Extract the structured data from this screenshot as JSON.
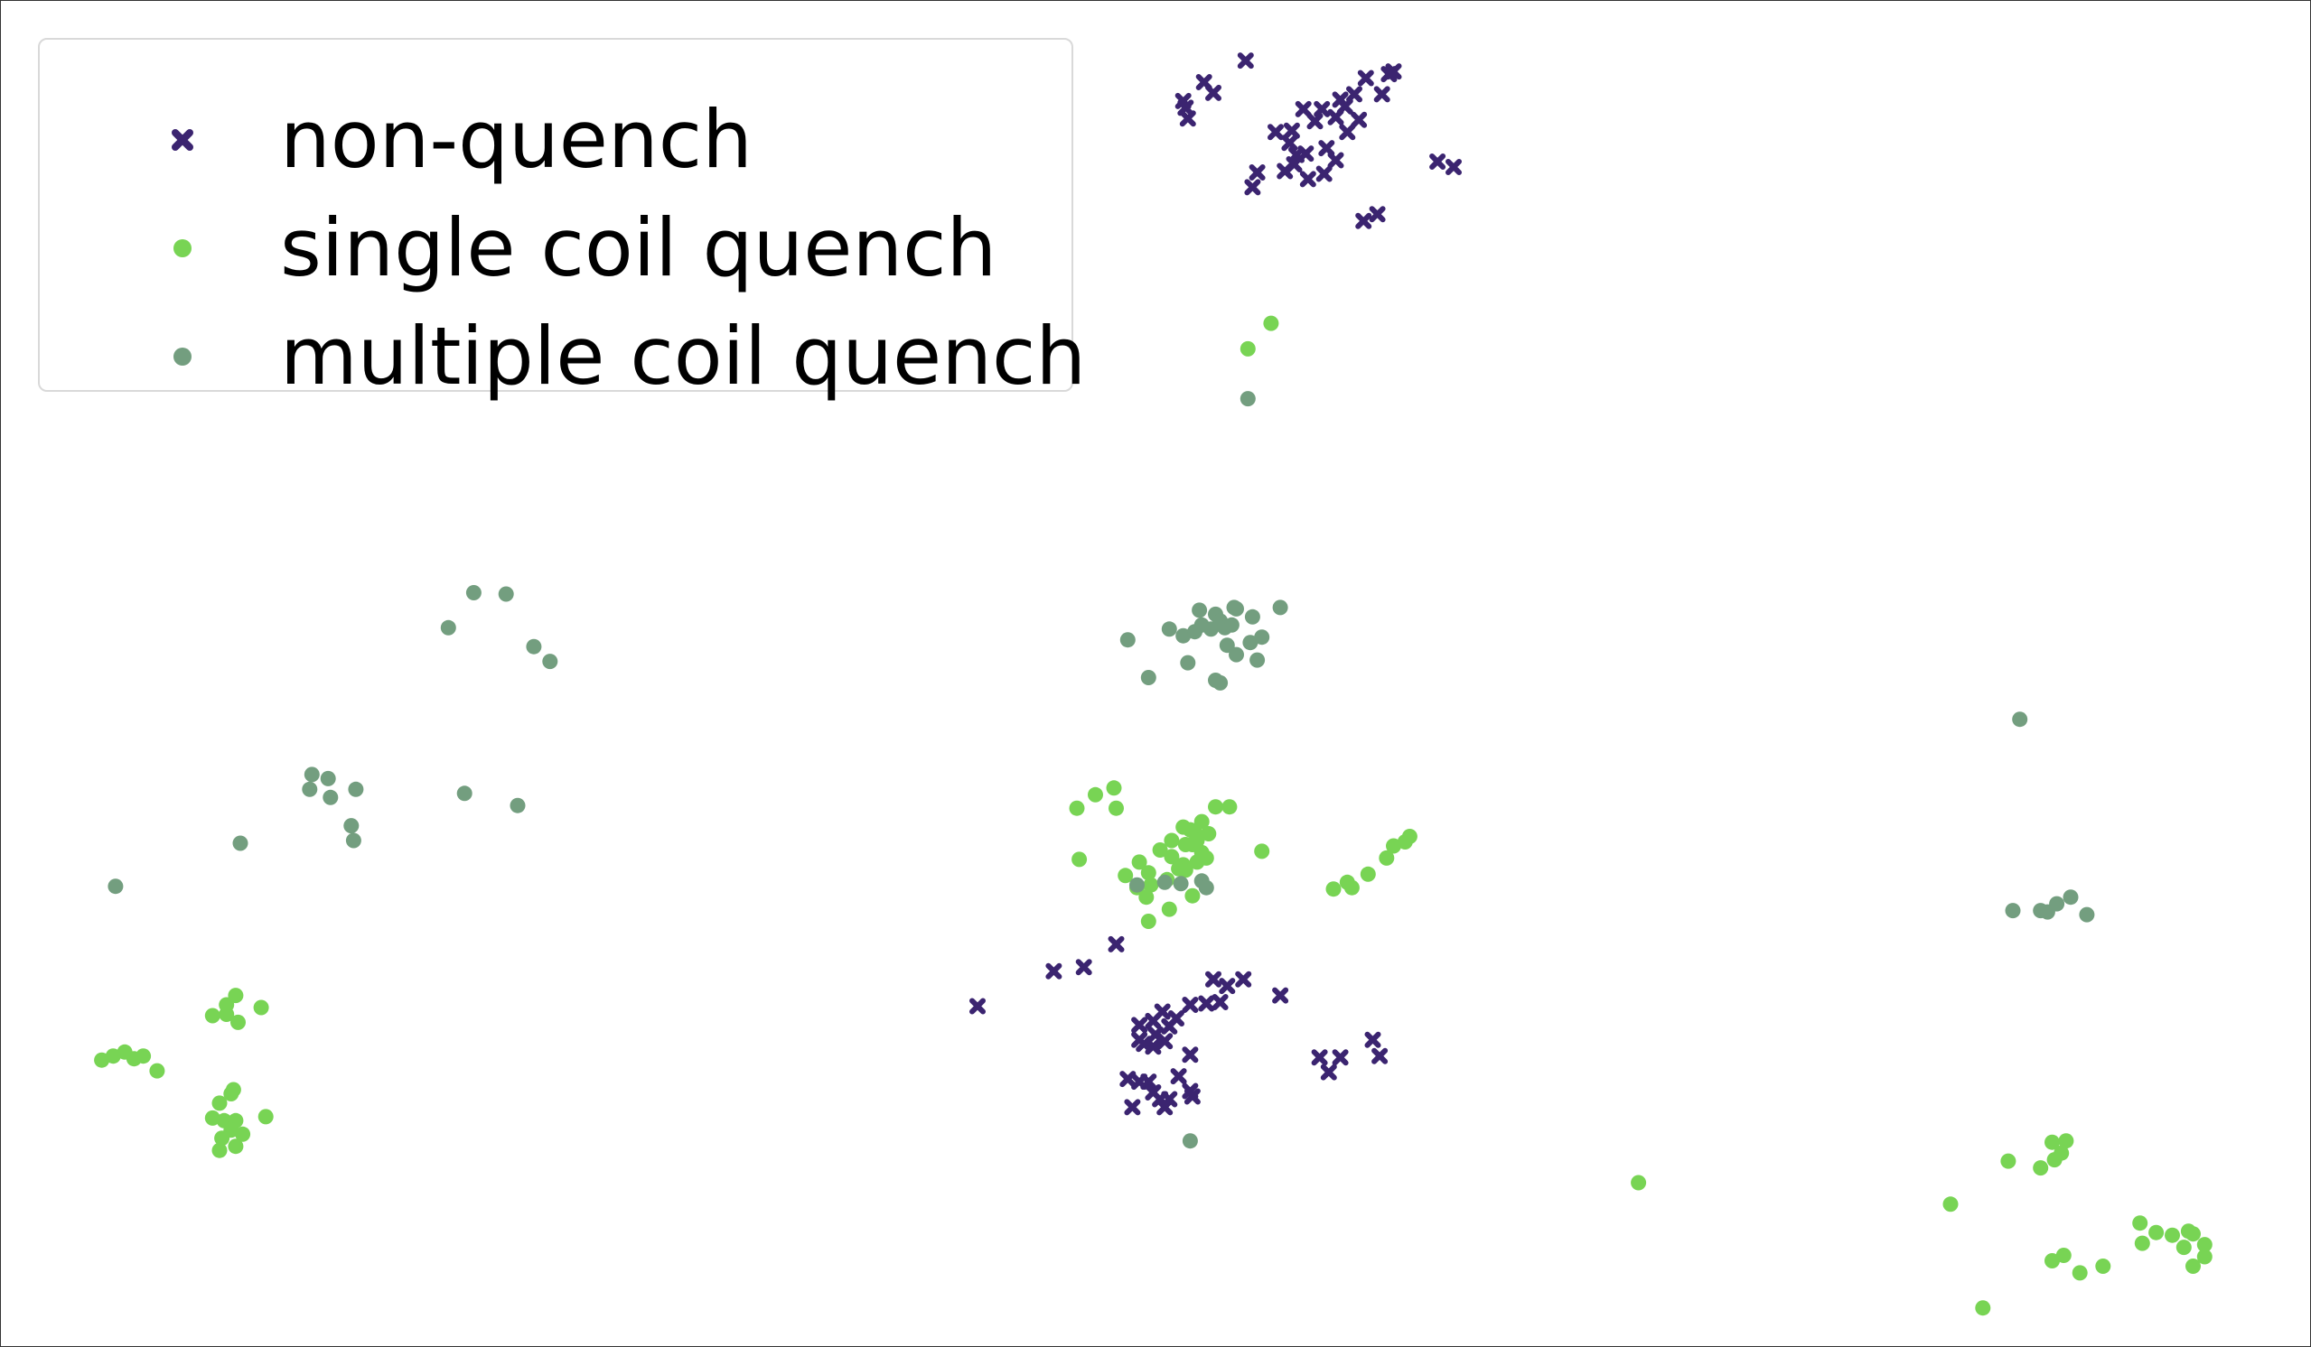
{
  "chart_data": {
    "type": "scatter",
    "title": "",
    "xlabel": "",
    "ylabel": "",
    "axes_visible": false,
    "xlim": [
      0,
      100
    ],
    "ylim": [
      0,
      100
    ],
    "legend_position": "top-left",
    "series": [
      {
        "name": "non-quench",
        "color": "#3b2470",
        "marker": "x",
        "points": [
          [
            53.9,
            95.5
          ],
          [
            52.1,
            93.9
          ],
          [
            52.5,
            93.1
          ],
          [
            51.2,
            92.5
          ],
          [
            51.4,
            91.2
          ],
          [
            51.3,
            92.0
          ],
          [
            56.4,
            91.9
          ],
          [
            56.9,
            91.0
          ],
          [
            57.2,
            91.9
          ],
          [
            57.8,
            91.3
          ],
          [
            58.0,
            92.6
          ],
          [
            58.6,
            93.0
          ],
          [
            59.1,
            94.2
          ],
          [
            60.1,
            94.5
          ],
          [
            60.3,
            94.7
          ],
          [
            59.8,
            93.0
          ],
          [
            58.2,
            92.1
          ],
          [
            58.8,
            91.1
          ],
          [
            58.3,
            90.2
          ],
          [
            57.4,
            89.0
          ],
          [
            57.8,
            88.1
          ],
          [
            56.5,
            88.6
          ],
          [
            56.0,
            87.8
          ],
          [
            55.8,
            89.4
          ],
          [
            55.2,
            90.2
          ],
          [
            55.9,
            90.3
          ],
          [
            56.1,
            88.5
          ],
          [
            55.6,
            87.3
          ],
          [
            54.4,
            87.2
          ],
          [
            54.2,
            86.1
          ],
          [
            56.6,
            86.7
          ],
          [
            57.3,
            87.1
          ],
          [
            62.2,
            88.0
          ],
          [
            62.9,
            87.6
          ],
          [
            59.6,
            84.1
          ],
          [
            59.0,
            83.6
          ],
          [
            42.3,
            25.3
          ],
          [
            45.6,
            27.9
          ],
          [
            46.9,
            28.2
          ],
          [
            48.3,
            29.9
          ],
          [
            52.5,
            27.3
          ],
          [
            53.1,
            26.8
          ],
          [
            52.8,
            25.6
          ],
          [
            52.2,
            25.5
          ],
          [
            51.5,
            25.4
          ],
          [
            50.9,
            24.4
          ],
          [
            50.3,
            24.9
          ],
          [
            50.6,
            23.8
          ],
          [
            49.9,
            24.2
          ],
          [
            49.3,
            23.9
          ],
          [
            50.0,
            23.2
          ],
          [
            50.4,
            22.7
          ],
          [
            49.5,
            22.5
          ],
          [
            49.9,
            22.3
          ],
          [
            49.3,
            22.8
          ],
          [
            51.5,
            21.7
          ],
          [
            55.4,
            26.1
          ],
          [
            53.8,
            27.3
          ],
          [
            48.8,
            19.9
          ],
          [
            49.3,
            19.7
          ],
          [
            49.7,
            19.7
          ],
          [
            49.9,
            18.9
          ],
          [
            50.2,
            18.4
          ],
          [
            50.6,
            18.4
          ],
          [
            51.0,
            20.1
          ],
          [
            51.6,
            18.6
          ],
          [
            51.5,
            19.0
          ],
          [
            49.0,
            17.8
          ],
          [
            50.4,
            17.8
          ],
          [
            57.1,
            21.5
          ],
          [
            58.0,
            21.5
          ],
          [
            57.5,
            20.4
          ],
          [
            59.4,
            22.8
          ],
          [
            59.7,
            21.6
          ]
        ]
      },
      {
        "name": "single coil quench",
        "color": "#78d454",
        "marker": "o",
        "points": [
          [
            55.0,
            76.0
          ],
          [
            54.0,
            74.1
          ],
          [
            46.6,
            40.0
          ],
          [
            47.4,
            41.0
          ],
          [
            48.2,
            41.5
          ],
          [
            48.3,
            40.0
          ],
          [
            46.7,
            36.2
          ],
          [
            49.3,
            36.0
          ],
          [
            49.7,
            35.2
          ],
          [
            50.2,
            36.9
          ],
          [
            50.7,
            37.6
          ],
          [
            51.2,
            38.6
          ],
          [
            51.7,
            38.2
          ],
          [
            52.0,
            39.0
          ],
          [
            52.6,
            40.1
          ],
          [
            53.2,
            40.1
          ],
          [
            52.3,
            38.1
          ],
          [
            51.3,
            37.3
          ],
          [
            51.6,
            37.3
          ],
          [
            51.2,
            35.8
          ],
          [
            50.7,
            36.4
          ],
          [
            51.8,
            36.0
          ],
          [
            52.2,
            36.3
          ],
          [
            51.8,
            37.6
          ],
          [
            51.5,
            38.4
          ],
          [
            52.0,
            36.7
          ],
          [
            51.0,
            35.5
          ],
          [
            50.5,
            34.7
          ],
          [
            51.3,
            35.4
          ],
          [
            49.8,
            34.3
          ],
          [
            49.6,
            33.4
          ],
          [
            48.7,
            35.0
          ],
          [
            49.2,
            34.1
          ],
          [
            50.6,
            32.5
          ],
          [
            49.7,
            31.6
          ],
          [
            51.6,
            33.5
          ],
          [
            54.6,
            36.8
          ],
          [
            57.7,
            34.0
          ],
          [
            58.3,
            34.5
          ],
          [
            58.5,
            34.1
          ],
          [
            59.2,
            35.1
          ],
          [
            60.0,
            36.3
          ],
          [
            60.3,
            37.2
          ],
          [
            60.8,
            37.5
          ],
          [
            61.0,
            37.9
          ],
          [
            10.2,
            26.1
          ],
          [
            9.8,
            25.4
          ],
          [
            9.2,
            24.6
          ],
          [
            11.3,
            25.2
          ],
          [
            10.3,
            24.1
          ],
          [
            9.8,
            24.7
          ],
          [
            4.4,
            21.3
          ],
          [
            4.9,
            21.6
          ],
          [
            5.4,
            21.9
          ],
          [
            5.8,
            21.4
          ],
          [
            6.2,
            21.6
          ],
          [
            6.8,
            20.5
          ],
          [
            10.1,
            19.1
          ],
          [
            9.5,
            18.1
          ],
          [
            10.0,
            18.8
          ],
          [
            11.5,
            17.1
          ],
          [
            9.7,
            16.8
          ],
          [
            9.2,
            17.0
          ],
          [
            10.2,
            16.8
          ],
          [
            10.0,
            16.1
          ],
          [
            10.5,
            15.8
          ],
          [
            9.6,
            15.5
          ],
          [
            9.5,
            14.6
          ],
          [
            10.2,
            14.9
          ],
          [
            70.9,
            12.2
          ],
          [
            84.4,
            10.6
          ],
          [
            86.9,
            13.8
          ],
          [
            88.3,
            13.3
          ],
          [
            88.9,
            13.9
          ],
          [
            89.2,
            14.4
          ],
          [
            88.8,
            15.2
          ],
          [
            89.4,
            15.3
          ],
          [
            92.6,
            9.2
          ],
          [
            93.3,
            8.5
          ],
          [
            94.0,
            8.3
          ],
          [
            94.7,
            8.6
          ],
          [
            94.9,
            8.4
          ],
          [
            95.4,
            7.6
          ],
          [
            94.5,
            7.4
          ],
          [
            95.4,
            6.7
          ],
          [
            94.9,
            6.0
          ],
          [
            92.7,
            7.7
          ],
          [
            91.0,
            6.0
          ],
          [
            90.0,
            5.5
          ],
          [
            88.8,
            6.4
          ],
          [
            89.3,
            6.8
          ],
          [
            85.8,
            2.9
          ]
        ]
      },
      {
        "name": "multiple coil quench",
        "color": "#739e7f",
        "marker": "o",
        "points": [
          [
            54.0,
            70.4
          ],
          [
            20.5,
            56.0
          ],
          [
            21.9,
            55.9
          ],
          [
            19.4,
            53.4
          ],
          [
            23.1,
            52.0
          ],
          [
            23.8,
            50.9
          ],
          [
            13.5,
            42.5
          ],
          [
            14.2,
            42.2
          ],
          [
            13.4,
            41.4
          ],
          [
            15.4,
            41.4
          ],
          [
            14.3,
            40.8
          ],
          [
            20.1,
            41.1
          ],
          [
            22.4,
            40.2
          ],
          [
            15.2,
            38.7
          ],
          [
            15.3,
            37.6
          ],
          [
            10.4,
            37.4
          ],
          [
            5.0,
            34.2
          ],
          [
            51.9,
            54.7
          ],
          [
            52.6,
            54.4
          ],
          [
            53.4,
            54.9
          ],
          [
            53.5,
            54.8
          ],
          [
            55.4,
            54.9
          ],
          [
            54.2,
            54.2
          ],
          [
            50.6,
            53.3
          ],
          [
            51.2,
            52.8
          ],
          [
            51.7,
            53.1
          ],
          [
            52.0,
            53.6
          ],
          [
            52.4,
            53.3
          ],
          [
            52.8,
            53.9
          ],
          [
            53.0,
            53.4
          ],
          [
            53.3,
            53.6
          ],
          [
            54.1,
            52.3
          ],
          [
            54.6,
            52.7
          ],
          [
            53.1,
            52.1
          ],
          [
            48.8,
            52.5
          ],
          [
            53.5,
            51.4
          ],
          [
            54.4,
            51.0
          ],
          [
            51.4,
            50.8
          ],
          [
            49.7,
            49.7
          ],
          [
            52.8,
            49.3
          ],
          [
            52.6,
            49.5
          ],
          [
            87.4,
            46.6
          ],
          [
            49.2,
            34.3
          ],
          [
            50.4,
            34.5
          ],
          [
            51.1,
            34.4
          ],
          [
            52.0,
            34.6
          ],
          [
            52.2,
            34.1
          ],
          [
            87.1,
            32.4
          ],
          [
            88.3,
            32.4
          ],
          [
            88.6,
            32.3
          ],
          [
            89.0,
            32.9
          ],
          [
            89.6,
            33.4
          ],
          [
            90.3,
            32.1
          ],
          [
            51.5,
            15.3
          ]
        ]
      }
    ]
  }
}
